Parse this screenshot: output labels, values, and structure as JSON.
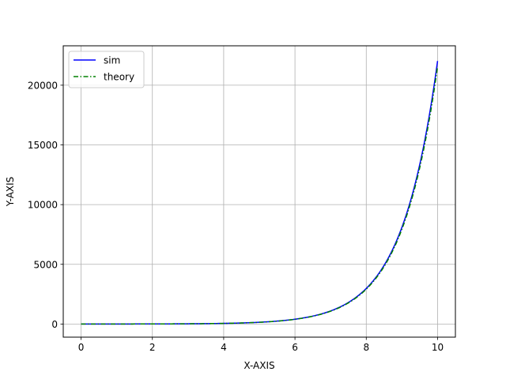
{
  "chart_data": {
    "type": "line",
    "title": "",
    "xlabel": "X-AXIS",
    "ylabel": "Y-AXIS",
    "xlim": [
      -0.5,
      10.5
    ],
    "ylim": [
      -1100,
      23300
    ],
    "xticks": [
      0,
      2,
      4,
      6,
      8,
      10
    ],
    "yticks": [
      0,
      5000,
      10000,
      15000,
      20000
    ],
    "grid": true,
    "legend_position": "top-left",
    "x": [
      0,
      0.5,
      1,
      1.5,
      2,
      2.5,
      3,
      3.5,
      4,
      4.5,
      5,
      5.5,
      6,
      6.5,
      7,
      7.5,
      8,
      8.5,
      9,
      9.5,
      10
    ],
    "series": [
      {
        "name": "sim",
        "color": "#0000ff",
        "style": "solid",
        "values": [
          0,
          0.6,
          1.7,
          3.5,
          6.4,
          11.2,
          19.1,
          32.1,
          53.6,
          89.0,
          147.4,
          243.7,
          402.4,
          664.1,
          1095.6,
          1807.0,
          2979.9,
          4913.8,
          8102.1,
          13358.7,
          22025.5
        ]
      },
      {
        "name": "theory",
        "color": "#008000",
        "style": "dashdot",
        "values": [
          0,
          0.6,
          1.7,
          3.4,
          6.3,
          11.0,
          18.7,
          31.4,
          52.5,
          87.2,
          144.5,
          238.8,
          394.4,
          650.8,
          1073.7,
          1770.9,
          2920.3,
          4815.5,
          7940.1,
          13091.5,
          21585.0
        ]
      }
    ]
  }
}
